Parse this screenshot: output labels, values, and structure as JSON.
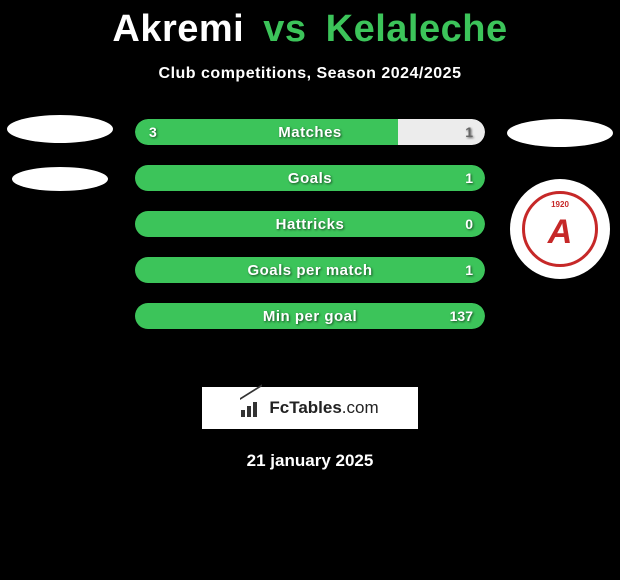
{
  "title": {
    "player1": "Akremi",
    "vs": "vs",
    "player2": "Kelaleche"
  },
  "subtitle": "Club competitions, Season 2024/2025",
  "badge": {
    "year": "1920",
    "letter": "A"
  },
  "stats": [
    {
      "label": "Matches",
      "left_value": "3",
      "right_value": "1",
      "left_pct": 75,
      "colors": {
        "left": "#3cc45a",
        "right": "#ececec",
        "right_text": "#666666"
      }
    },
    {
      "label": "Goals",
      "left_value": "",
      "right_value": "1",
      "left_pct": 0,
      "colors": {
        "left": "#3cc45a",
        "right": "#3cc45a",
        "right_text": "#ffffff"
      }
    },
    {
      "label": "Hattricks",
      "left_value": "",
      "right_value": "0",
      "left_pct": 0,
      "colors": {
        "left": "#3cc45a",
        "right": "#3cc45a",
        "right_text": "#ffffff"
      }
    },
    {
      "label": "Goals per match",
      "left_value": "",
      "right_value": "1",
      "left_pct": 0,
      "colors": {
        "left": "#3cc45a",
        "right": "#3cc45a",
        "right_text": "#ffffff"
      }
    },
    {
      "label": "Min per goal",
      "left_value": "",
      "right_value": "137",
      "left_pct": 0,
      "colors": {
        "left": "#3cc45a",
        "right": "#3cc45a",
        "right_text": "#ffffff"
      }
    }
  ],
  "brand": {
    "name_main": "FcTables",
    "name_tld": ".com"
  },
  "date": "21 january 2025",
  "palette": {
    "background": "#000000",
    "accent": "#3cc45a",
    "bar_neutral": "#ececec",
    "text_light": "#ffffff",
    "badge_red": "#c62828"
  }
}
